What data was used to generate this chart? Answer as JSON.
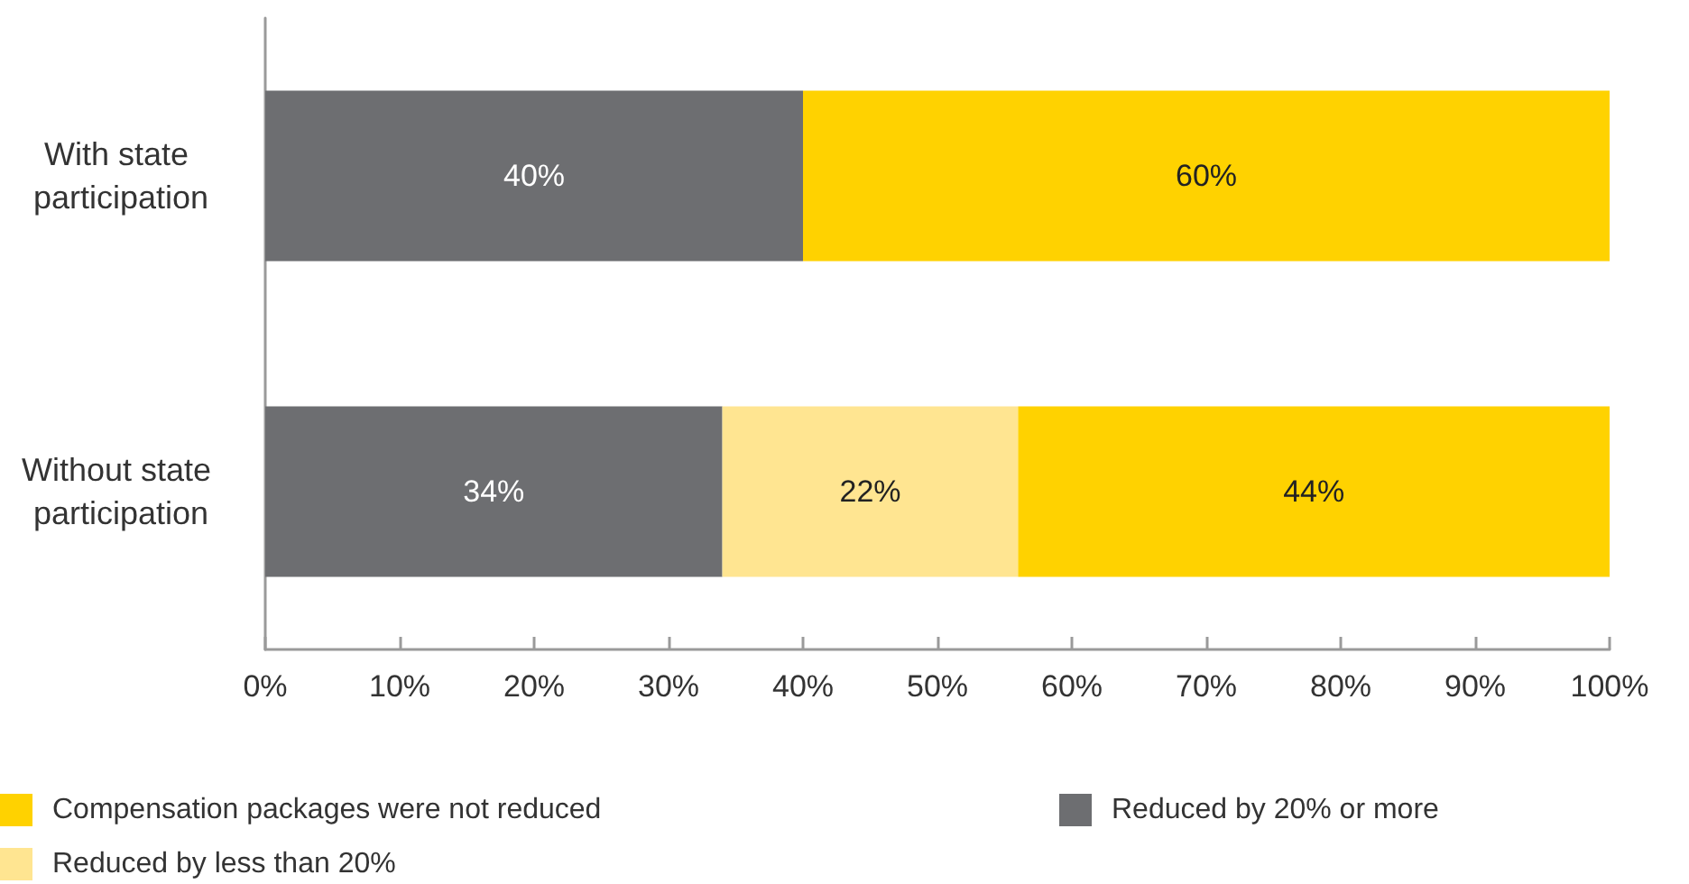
{
  "chart_data": {
    "type": "bar",
    "orientation": "horizontal",
    "stacked": true,
    "categories": [
      "With state participation",
      "Without state participation"
    ],
    "series": [
      {
        "name": "Reduced by 20% or more",
        "color": "#6d6e71",
        "values": [
          40,
          34
        ],
        "value_labels": [
          "40%",
          "34%"
        ]
      },
      {
        "name": "Reduced by less than 20%",
        "color": "#ffe591",
        "values": [
          null,
          22
        ],
        "value_labels": [
          null,
          "22%"
        ]
      },
      {
        "name": "Compensation packages were not reduced",
        "color": "#ffd200",
        "values": [
          60,
          44
        ],
        "value_labels": [
          "60%",
          "44%"
        ]
      }
    ],
    "xlim": [
      0,
      100
    ],
    "xticks": [
      {
        "value": 0,
        "label": "0%"
      },
      {
        "value": 10,
        "label": "10%"
      },
      {
        "value": 20,
        "label": "20%"
      },
      {
        "value": 30,
        "label": "30%"
      },
      {
        "value": 40,
        "label": "40%"
      },
      {
        "value": 50,
        "label": "50%"
      },
      {
        "value": 60,
        "label": "60%"
      },
      {
        "value": 70,
        "label": "70%"
      },
      {
        "value": 80,
        "label": "80%"
      },
      {
        "value": 90,
        "label": "90%"
      },
      {
        "value": 100,
        "label": "100%"
      }
    ],
    "legend": "bottom"
  }
}
